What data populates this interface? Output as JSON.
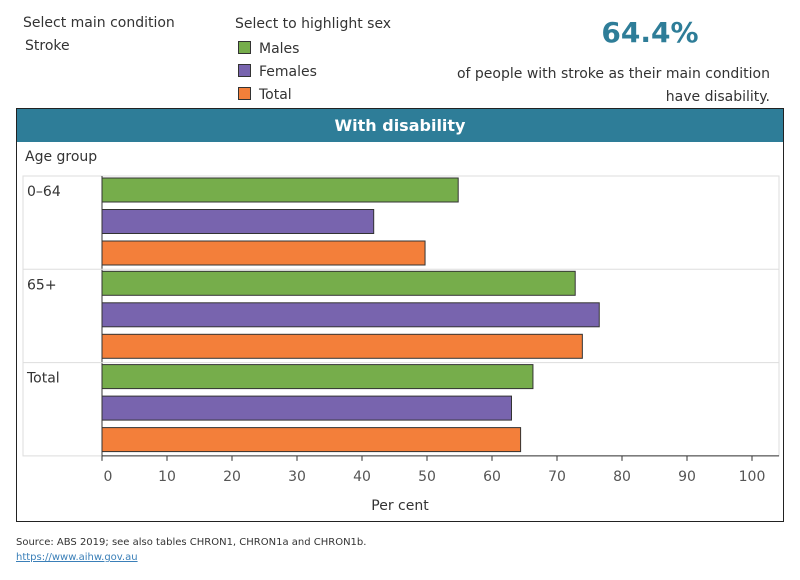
{
  "filters": {
    "condition_label": "Select main condition",
    "condition_value": "Stroke",
    "sex_label": "Select to highlight sex",
    "legend": [
      {
        "label": "Males",
        "color": "#76ad4b"
      },
      {
        "label": "Females",
        "color": "#7864ae"
      },
      {
        "label": "Total",
        "color": "#f37f3a"
      }
    ]
  },
  "kpi": {
    "value": "64.4%",
    "line1": "of people with stroke as their main condition",
    "line2": "have disability.",
    "color": "#2e7d98"
  },
  "chart_data": {
    "type": "bar",
    "orientation": "horizontal",
    "title": "With disability",
    "ylabel": "Age group",
    "xlabel": "Per cent",
    "categories": [
      "0–64",
      "65+",
      "Total"
    ],
    "xlim": [
      0,
      100
    ],
    "xticks": [
      0,
      10,
      20,
      30,
      40,
      50,
      60,
      70,
      80,
      90,
      100
    ],
    "series": [
      {
        "name": "Males",
        "color": "#76ad4b",
        "values": [
          54.8,
          72.8,
          66.3
        ]
      },
      {
        "name": "Females",
        "color": "#7864ae",
        "values": [
          41.8,
          76.5,
          63.0
        ]
      },
      {
        "name": "Total",
        "color": "#f37f3a",
        "values": [
          49.7,
          73.9,
          64.4
        ]
      }
    ]
  },
  "footer": {
    "source": "Source: ABS 2019; see also tables CHRON1, CHRON1a and CHRON1b.",
    "link": "https://www.aihw.gov.au"
  }
}
